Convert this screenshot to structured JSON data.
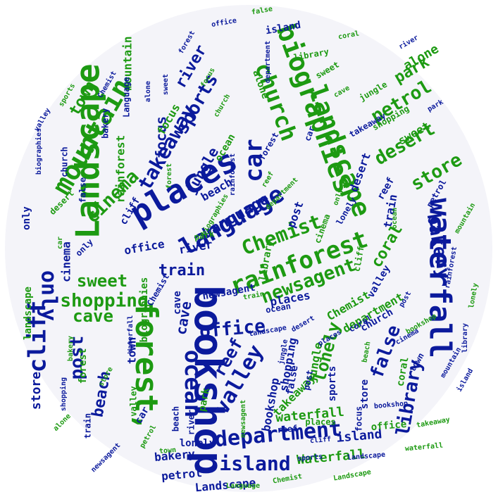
{
  "colors": {
    "background": "#f4f4f9",
    "blue": "#0b1a9c",
    "green": "#1d9a12"
  },
  "words": [
    {
      "t": "bookshop",
      "c": "blue"
    },
    {
      "t": "Landscape",
      "c": "green"
    },
    {
      "t": "places",
      "c": "blue"
    },
    {
      "t": "forest,",
      "c": "green"
    },
    {
      "t": "waterfall",
      "c": "blue"
    },
    {
      "t": "mountain",
      "c": "green"
    },
    {
      "t": "biographies",
      "c": "green"
    },
    {
      "t": "landscape",
      "c": "green"
    },
    {
      "t": "language",
      "c": "blue"
    },
    {
      "t": "ocean",
      "c": "blue"
    },
    {
      "t": "rainforest",
      "c": "green"
    },
    {
      "t": "department",
      "c": "blue"
    },
    {
      "t": "church",
      "c": "green"
    },
    {
      "t": "cliff",
      "c": "blue"
    },
    {
      "t": "island",
      "c": "blue"
    },
    {
      "t": "valley",
      "c": "blue"
    },
    {
      "t": "car",
      "c": "blue"
    },
    {
      "t": "Chemist",
      "c": "green"
    },
    {
      "t": "shopping",
      "c": "green"
    },
    {
      "t": "bakery",
      "c": "blue"
    },
    {
      "t": "only",
      "c": "blue"
    },
    {
      "t": "cinema",
      "c": "green"
    },
    {
      "t": "takeaway",
      "c": "blue"
    },
    {
      "t": "office",
      "c": "blue"
    },
    {
      "t": "sweet",
      "c": "green"
    },
    {
      "t": "newsagent",
      "c": "green"
    },
    {
      "t": "petrol",
      "c": "green"
    },
    {
      "t": "desert",
      "c": "green"
    },
    {
      "t": "store",
      "c": "green"
    },
    {
      "t": "false",
      "c": "blue"
    },
    {
      "t": "library",
      "c": "blue"
    },
    {
      "t": "lonely",
      "c": "green"
    },
    {
      "t": "reef",
      "c": "blue"
    },
    {
      "t": "cave",
      "c": "green"
    },
    {
      "t": "post",
      "c": "blue"
    },
    {
      "t": "beach",
      "c": "blue"
    },
    {
      "t": "sports",
      "c": "blue"
    },
    {
      "t": "river",
      "c": "blue"
    },
    {
      "t": "town",
      "c": "green"
    },
    {
      "t": "jungle",
      "c": "blue"
    },
    {
      "t": "coral",
      "c": "green"
    },
    {
      "t": "train",
      "c": "blue"
    },
    {
      "t": "focus",
      "c": "blue"
    },
    {
      "t": "park",
      "c": "green"
    },
    {
      "t": "alone",
      "c": "green"
    },
    {
      "t": "Language",
      "c": "blue"
    },
    {
      "t": "cave",
      "c": "blue"
    },
    {
      "t": "store",
      "c": "blue"
    },
    {
      "t": "Waterfall",
      "c": "green"
    },
    {
      "t": "waterfall",
      "c": "green"
    },
    {
      "t": "island",
      "c": "blue"
    },
    {
      "t": "places",
      "c": "blue"
    },
    {
      "t": "office",
      "c": "blue"
    },
    {
      "t": "bakery",
      "c": "blue"
    },
    {
      "t": "petrol",
      "c": "blue"
    },
    {
      "t": "cinema",
      "c": "blue"
    },
    {
      "t": "takeaway",
      "c": "green"
    },
    {
      "t": "Landscape",
      "c": "blue"
    },
    {
      "t": "mountain",
      "c": "green"
    },
    {
      "t": "rainforest",
      "c": "green"
    },
    {
      "t": "shopping",
      "c": "blue"
    },
    {
      "t": "department",
      "c": "green"
    },
    {
      "t": "bookshop",
      "c": "blue"
    },
    {
      "t": "desert",
      "c": "blue"
    },
    {
      "t": "Chemist",
      "c": "green"
    },
    {
      "t": "focus",
      "c": "green"
    },
    {
      "t": "sweet",
      "c": "green"
    },
    {
      "t": "river",
      "c": "blue"
    },
    {
      "t": "beach",
      "c": "blue"
    },
    {
      "t": "town",
      "c": "blue"
    },
    {
      "t": "jungle",
      "c": "green"
    },
    {
      "t": "train",
      "c": "blue"
    },
    {
      "t": "post",
      "c": "blue"
    },
    {
      "t": "park",
      "c": "green"
    },
    {
      "t": "coral",
      "c": "green"
    },
    {
      "t": "reef",
      "c": "blue"
    },
    {
      "t": "car",
      "c": "blue"
    },
    {
      "t": "church",
      "c": "blue"
    },
    {
      "t": "cliff",
      "c": "blue"
    },
    {
      "t": "ocean",
      "c": "green"
    },
    {
      "t": "valley",
      "c": "blue"
    },
    {
      "t": "library",
      "c": "green"
    },
    {
      "t": "lonely",
      "c": "blue"
    },
    {
      "t": "only",
      "c": "blue"
    },
    {
      "t": "false",
      "c": "blue"
    },
    {
      "t": "forest",
      "c": "green"
    },
    {
      "t": "landscape",
      "c": "green"
    },
    {
      "t": "newsagent",
      "c": "blue"
    },
    {
      "t": "sports",
      "c": "blue"
    },
    {
      "t": "alone",
      "c": "green"
    },
    {
      "t": "biographies",
      "c": "green"
    },
    {
      "t": "store",
      "c": "blue"
    },
    {
      "t": "cave",
      "c": "blue"
    },
    {
      "t": "office",
      "c": "green"
    },
    {
      "t": "island",
      "c": "blue"
    },
    {
      "t": "places",
      "c": "green"
    },
    {
      "t": "bakery",
      "c": "blue"
    },
    {
      "t": "petrol",
      "c": "blue"
    },
    {
      "t": "Language",
      "c": "blue"
    },
    {
      "t": "takeaway",
      "c": "blue"
    },
    {
      "t": "cinema",
      "c": "green"
    },
    {
      "t": "desert",
      "c": "green"
    },
    {
      "t": "Chemist",
      "c": "blue"
    },
    {
      "t": "coral",
      "c": "blue"
    },
    {
      "t": "town",
      "c": "blue"
    },
    {
      "t": "sweet",
      "c": "green"
    },
    {
      "t": "beach",
      "c": "blue"
    },
    {
      "t": "river",
      "c": "blue"
    },
    {
      "t": "train",
      "c": "blue"
    },
    {
      "t": "jungle",
      "c": "green"
    },
    {
      "t": "focus",
      "c": "blue"
    },
    {
      "t": "post",
      "c": "blue"
    },
    {
      "t": "park",
      "c": "green"
    },
    {
      "t": "reef",
      "c": "blue"
    },
    {
      "t": "car",
      "c": "blue"
    },
    {
      "t": "cliff",
      "c": "green"
    },
    {
      "t": "church",
      "c": "blue"
    },
    {
      "t": "valley",
      "c": "green"
    },
    {
      "t": "ocean",
      "c": "blue"
    },
    {
      "t": "lonely",
      "c": "blue"
    },
    {
      "t": "library",
      "c": "green"
    },
    {
      "t": "false",
      "c": "blue"
    },
    {
      "t": "only",
      "c": "blue"
    },
    {
      "t": "forest",
      "c": "blue"
    },
    {
      "t": "shopping",
      "c": "green"
    },
    {
      "t": "mountain",
      "c": "green"
    },
    {
      "t": "sports",
      "c": "green"
    },
    {
      "t": "alone",
      "c": "blue"
    },
    {
      "t": "newsagent",
      "c": "green"
    },
    {
      "t": "department",
      "c": "blue"
    },
    {
      "t": "rainforest",
      "c": "blue"
    },
    {
      "t": "biographies",
      "c": "blue"
    },
    {
      "t": "bookshop",
      "c": "green"
    },
    {
      "t": "waterfall",
      "c": "green"
    },
    {
      "t": "landscape",
      "c": "blue"
    },
    {
      "t": "store",
      "c": "green"
    },
    {
      "t": "cave",
      "c": "green"
    },
    {
      "t": "island",
      "c": "blue"
    },
    {
      "t": "office",
      "c": "blue"
    },
    {
      "t": "places",
      "c": "blue"
    },
    {
      "t": "petrol",
      "c": "green"
    },
    {
      "t": "bakery",
      "c": "green"
    },
    {
      "t": "cinema",
      "c": "blue"
    },
    {
      "t": "takeaway",
      "c": "green"
    },
    {
      "t": "desert",
      "c": "blue"
    },
    {
      "t": "coral",
      "c": "green"
    },
    {
      "t": "Chemist",
      "c": "blue"
    },
    {
      "t": "town",
      "c": "green"
    },
    {
      "t": "sweet",
      "c": "blue"
    },
    {
      "t": "beach",
      "c": "green"
    },
    {
      "t": "river",
      "c": "blue"
    },
    {
      "t": "train",
      "c": "green"
    },
    {
      "t": "jungle",
      "c": "blue"
    },
    {
      "t": "focus",
      "c": "green"
    },
    {
      "t": "post",
      "c": "blue"
    },
    {
      "t": "park",
      "c": "blue"
    },
    {
      "t": "reef",
      "c": "green"
    },
    {
      "t": "car",
      "c": "green"
    },
    {
      "t": "cliff",
      "c": "blue"
    },
    {
      "t": "church",
      "c": "green"
    },
    {
      "t": "valley",
      "c": "blue"
    },
    {
      "t": "ocean",
      "c": "green"
    },
    {
      "t": "lonely",
      "c": "green"
    },
    {
      "t": "library",
      "c": "blue"
    },
    {
      "t": "false",
      "c": "green"
    },
    {
      "t": "only",
      "c": "green"
    },
    {
      "t": "forest",
      "c": "blue"
    },
    {
      "t": "shopping",
      "c": "blue"
    },
    {
      "t": "mountain",
      "c": "blue"
    },
    {
      "t": "sports",
      "c": "blue"
    },
    {
      "t": "alone",
      "c": "green"
    },
    {
      "t": "newsagent",
      "c": "blue"
    },
    {
      "t": "department",
      "c": "green"
    },
    {
      "t": "Language",
      "c": "green"
    },
    {
      "t": "Landscape",
      "c": "green"
    },
    {
      "t": "rainforest",
      "c": "blue"
    },
    {
      "t": "biographies",
      "c": "green"
    },
    {
      "t": "bookshop",
      "c": "blue"
    },
    {
      "t": "Waterfall",
      "c": "blue"
    },
    {
      "t": "Chemist",
      "c": "green"
    },
    {
      "t": "landscape",
      "c": "blue"
    },
    {
      "t": "forest",
      "c": "green"
    }
  ]
}
